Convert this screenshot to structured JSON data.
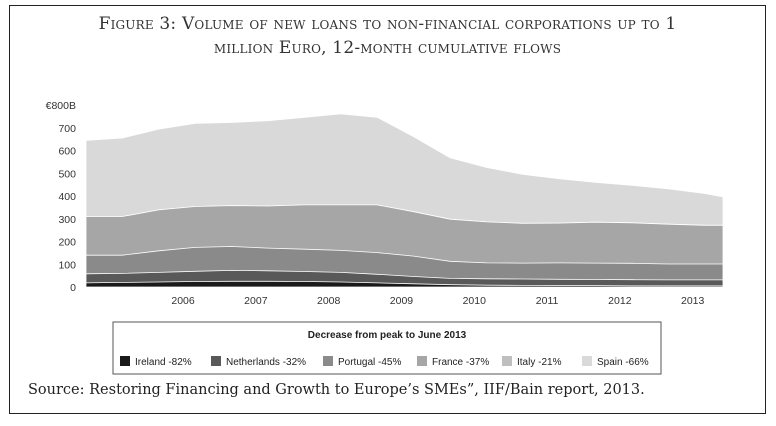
{
  "title": {
    "line1": "Figure 3: Volume of new loans to non-financial corporations up to 1",
    "line2": "million Euro, 12-month cumulative flows"
  },
  "source": "Source: Restoring Financing and Growth to Europe’s SMEs”, IIF/Bain report, 2013.",
  "chart_data": {
    "type": "area",
    "stacked": true,
    "y_unit_label": "€800B",
    "ylim": [
      0,
      800
    ],
    "y_ticks": [
      0,
      100,
      200,
      300,
      400,
      500,
      600,
      700
    ],
    "x_ticks": [
      "2006",
      "2007",
      "2008",
      "2009",
      "2010",
      "2011",
      "2012",
      "2013"
    ],
    "x": [
      "2005-03",
      "2005-09",
      "2006-03",
      "2006-09",
      "2007-03",
      "2007-09",
      "2008-03",
      "2008-09",
      "2009-03",
      "2009-09",
      "2010-03",
      "2010-09",
      "2011-03",
      "2011-09",
      "2012-03",
      "2012-09",
      "2013-03",
      "2013-09",
      "2013-12"
    ],
    "legend_title": "Decrease from peak to June 2013",
    "legend_position": "bottom",
    "series": [
      {
        "name": "Ireland -82%",
        "color": "#1a1a1a",
        "values": [
          18,
          20,
          22,
          24,
          25,
          25,
          24,
          22,
          18,
          14,
          10,
          8,
          7,
          6,
          6,
          5,
          5,
          5,
          5
        ]
      },
      {
        "name": "Netherlands -32%",
        "color": "#595959",
        "values": [
          40,
          40,
          42,
          45,
          48,
          46,
          44,
          42,
          38,
          32,
          28,
          28,
          28,
          28,
          27,
          27,
          26,
          26,
          26
        ]
      },
      {
        "name": "Portugal -45%",
        "color": "#8a8a8a",
        "values": [
          82,
          80,
          95,
          105,
          105,
          100,
          98,
          97,
          95,
          90,
          75,
          70,
          70,
          72,
          72,
          72,
          70,
          70,
          70
        ]
      },
      {
        "name": "France -37%",
        "color": "#a6a6a6",
        "values": [
          170,
          170,
          180,
          180,
          180,
          185,
          195,
          200,
          210,
          195,
          185,
          180,
          175,
          175,
          180,
          178,
          175,
          170,
          170
        ]
      },
      {
        "name": "Italy -21%",
        "color": "#bfbfbf",
        "values": [
          0,
          0,
          0,
          0,
          0,
          0,
          0,
          0,
          0,
          0,
          0,
          0,
          0,
          0,
          0,
          0,
          0,
          0,
          0
        ]
      },
      {
        "name": "Spain -66%",
        "color": "#d9d9d9",
        "values": [
          335,
          345,
          355,
          365,
          365,
          375,
          385,
          400,
          385,
          330,
          270,
          240,
          215,
          195,
          175,
          165,
          155,
          140,
          125
        ]
      }
    ]
  }
}
